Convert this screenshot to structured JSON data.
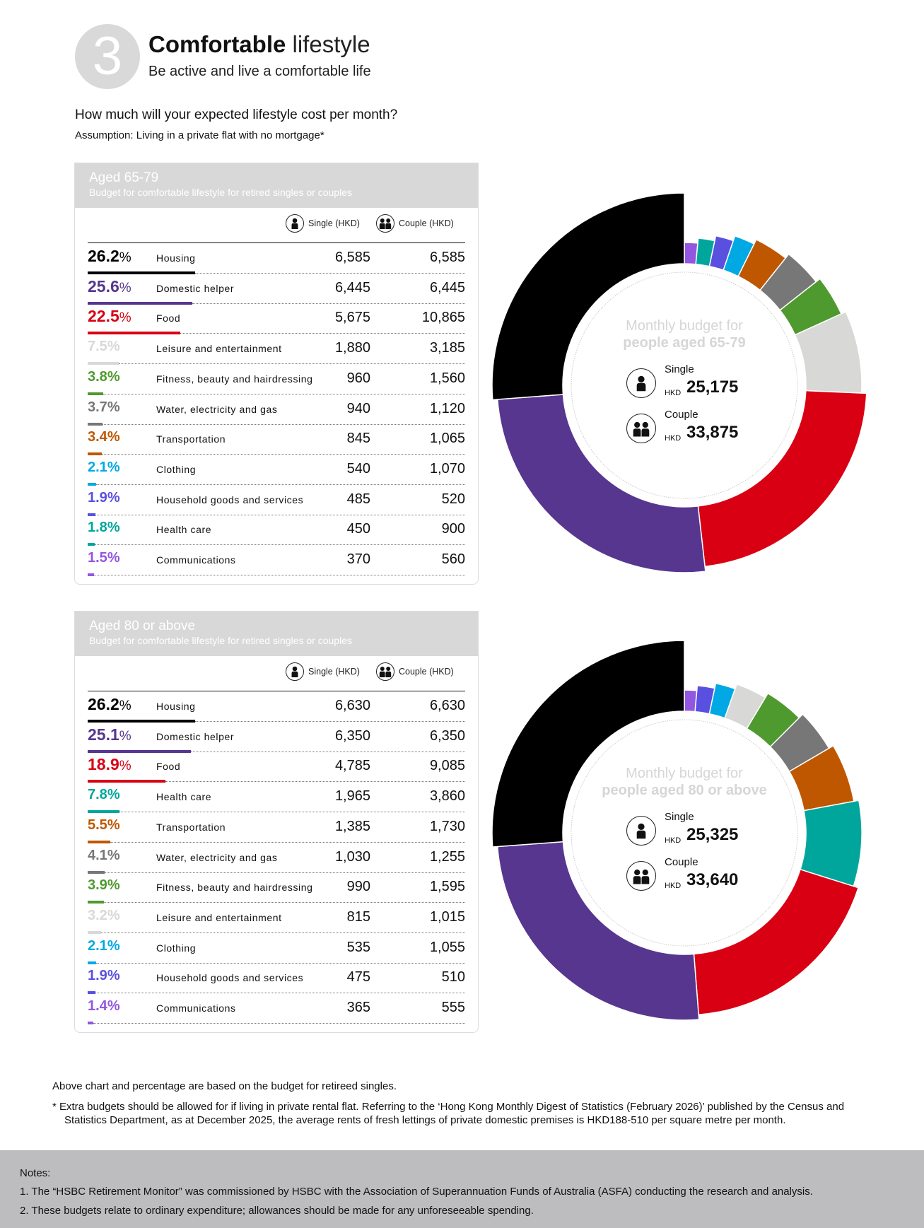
{
  "header": {
    "number": "3",
    "title_bold": "Comfortable",
    "title_light": "lifestyle",
    "subtitle": "Be active and live a comfortable life",
    "question": "How much will your expected lifestyle cost per month?",
    "assumption": "Assumption: Living in a private flat with no mortgage*"
  },
  "columns": {
    "single": "Single (HKD)",
    "couple": "Couple (HKD)"
  },
  "colors": {
    "Housing": "#000000",
    "Domestic helper": "#56368f",
    "Food": "#d90013",
    "Leisure and entertainment": "#d8d8d6",
    "Fitness, beauty and hairdressing": "#4e9a2f",
    "Water, electricity and gas": "#777777",
    "Transportation": "#bf5700",
    "Clothing": "#00a9e3",
    "Household goods and services": "#5a50e0",
    "Health care": "#00a69c",
    "Communications": "#9356e0"
  },
  "tables": [
    {
      "title": "Aged 65-79",
      "subtitle": "Budget for comfortable lifestyle for retired singles or couples",
      "rows": [
        {
          "pct": "26.2",
          "label": "Housing",
          "single": "6,585",
          "couple": "6,585"
        },
        {
          "pct": "25.6",
          "label": "Domestic helper",
          "single": "6,445",
          "couple": "6,445"
        },
        {
          "pct": "22.5",
          "label": "Food",
          "single": "5,675",
          "couple": "10,865"
        },
        {
          "pct": "7.5",
          "label": "Leisure and entertainment",
          "single": "1,880",
          "couple": "3,185"
        },
        {
          "pct": "3.8",
          "label": "Fitness, beauty and hairdressing",
          "single": "960",
          "couple": "1,560"
        },
        {
          "pct": "3.7",
          "label": "Water, electricity and gas",
          "single": "940",
          "couple": "1,120"
        },
        {
          "pct": "3.4",
          "label": "Transportation",
          "single": "845",
          "couple": "1,065"
        },
        {
          "pct": "2.1",
          "label": "Clothing",
          "single": "540",
          "couple": "1,070"
        },
        {
          "pct": "1.9",
          "label": "Household goods and services",
          "single": "485",
          "couple": "520"
        },
        {
          "pct": "1.8",
          "label": "Health care",
          "single": "450",
          "couple": "900"
        },
        {
          "pct": "1.5",
          "label": "Communications",
          "single": "370",
          "couple": "560"
        }
      ]
    },
    {
      "title": "Aged 80 or above",
      "subtitle": "Budget for comfortable lifestyle for retired singles or couples",
      "rows": [
        {
          "pct": "26.2",
          "label": "Housing",
          "single": "6,630",
          "couple": "6,630"
        },
        {
          "pct": "25.1",
          "label": "Domestic helper",
          "single": "6,350",
          "couple": "6,350"
        },
        {
          "pct": "18.9",
          "label": "Food",
          "single": "4,785",
          "couple": "9,085"
        },
        {
          "pct": "7.8",
          "label": "Health care",
          "single": "1,965",
          "couple": "3,860"
        },
        {
          "pct": "5.5",
          "label": "Transportation",
          "single": "1,385",
          "couple": "1,730"
        },
        {
          "pct": "4.1",
          "label": "Water, electricity and gas",
          "single": "1,030",
          "couple": "1,255"
        },
        {
          "pct": "3.9",
          "label": "Fitness, beauty and hairdressing",
          "single": "990",
          "couple": "1,595"
        },
        {
          "pct": "3.2",
          "label": "Leisure and entertainment",
          "single": "815",
          "couple": "1,015"
        },
        {
          "pct": "2.1",
          "label": "Clothing",
          "single": "535",
          "couple": "1,055"
        },
        {
          "pct": "1.9",
          "label": "Household goods and services",
          "single": "475",
          "couple": "510"
        },
        {
          "pct": "1.4",
          "label": "Communications",
          "single": "365",
          "couple": "555"
        }
      ]
    }
  ],
  "chart_data": [
    {
      "type": "pie",
      "title_line1": "Monthly budget for",
      "title_line2": "people aged 65-79",
      "single_label": "Single",
      "single_currency": "HKD",
      "single_total": "25,175",
      "couple_label": "Couple",
      "couple_currency": "HKD",
      "couple_total": "33,875",
      "categories": [
        "Housing",
        "Domestic helper",
        "Food",
        "Leisure and entertainment",
        "Fitness, beauty and hairdressing",
        "Water, electricity and gas",
        "Transportation",
        "Clothing",
        "Household goods and services",
        "Health care",
        "Communications"
      ],
      "values": [
        26.2,
        25.6,
        22.5,
        7.5,
        3.8,
        3.7,
        3.4,
        2.1,
        1.9,
        1.8,
        1.5
      ]
    },
    {
      "type": "pie",
      "title_line1": "Monthly budget for",
      "title_line2": "people aged 80 or above",
      "single_label": "Single",
      "single_currency": "HKD",
      "single_total": "25,325",
      "couple_label": "Couple",
      "couple_currency": "HKD",
      "couple_total": "33,640",
      "categories": [
        "Housing",
        "Domestic helper",
        "Food",
        "Health care",
        "Transportation",
        "Water, electricity and gas",
        "Fitness, beauty and hairdressing",
        "Leisure and entertainment",
        "Clothing",
        "Household goods and services",
        "Communications"
      ],
      "values": [
        26.2,
        25.1,
        18.9,
        7.8,
        5.5,
        4.1,
        3.9,
        3.2,
        2.1,
        1.9,
        1.4
      ]
    }
  ],
  "footnotes": {
    "basis": "Above chart and percentage are based on the budget for retireed singles.",
    "asterisk": "*  Extra budgets should be allowed for if living in private rental flat. Referring to the ‘Hong Kong Monthly Digest of Statistics (February 2026)’ published by the Census and Statistics Department, as at December 2025, the average rents of fresh lettings of private domestic premises is HKD188-510 per square metre per month."
  },
  "notes": {
    "heading": "Notes:",
    "items": [
      "1. The “HSBC Retirement Monitor” was commissioned by HSBC with the Association of Superannuation Funds of Australia (ASFA) conducting the research and analysis.",
      "2. These budgets relate to ordinary expenditure; allowances should be made for any unforeseeable spending."
    ]
  }
}
